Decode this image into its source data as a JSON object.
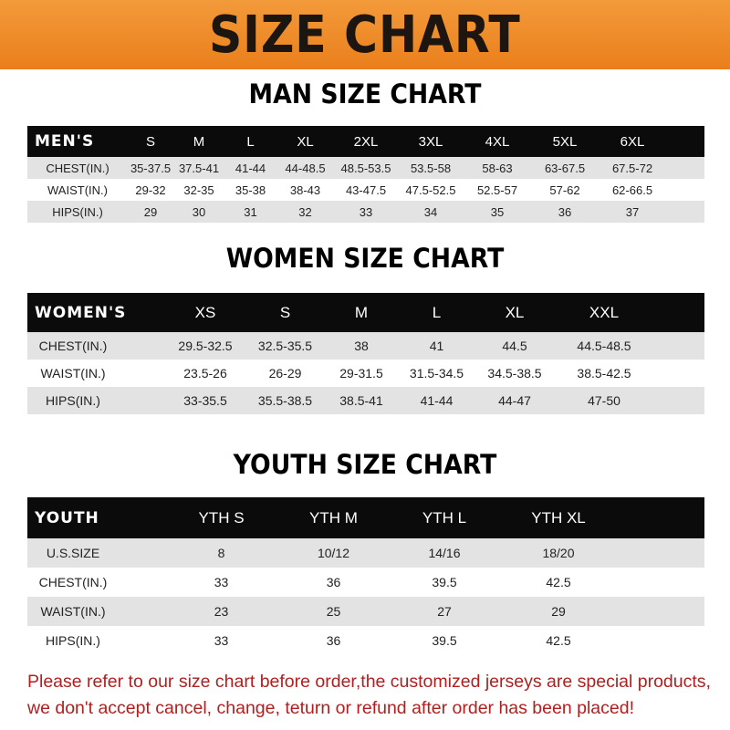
{
  "title": "SIZE CHART",
  "colors": {
    "banner": "#ee8a28",
    "header_row": "#0b0b0b",
    "stripe": "#e3e3e3",
    "note": "#b02020"
  },
  "men": {
    "heading": "MAN SIZE CHART",
    "label": "MEN'S",
    "sizes": [
      "S",
      "M",
      "L",
      "XL",
      "2XL",
      "3XL",
      "4XL",
      "5XL",
      "6XL"
    ],
    "rows": [
      {
        "label": "CHEST(IN.)",
        "values": [
          "35-37.5",
          "37.5-41",
          "41-44",
          "44-48.5",
          "48.5-53.5",
          "53.5-58",
          "58-63",
          "63-67.5",
          "67.5-72"
        ]
      },
      {
        "label": "WAIST(IN.)",
        "values": [
          "29-32",
          "32-35",
          "35-38",
          "38-43",
          "43-47.5",
          "47.5-52.5",
          "52.5-57",
          "57-62",
          "62-66.5"
        ]
      },
      {
        "label": "HIPS(IN.)",
        "values": [
          "29",
          "30",
          "31",
          "32",
          "33",
          "34",
          "35",
          "36",
          "37"
        ]
      }
    ]
  },
  "women": {
    "heading": "WOMEN SIZE CHART",
    "label": "WOMEN'S",
    "sizes": [
      "XS",
      "S",
      "M",
      "L",
      "XL",
      "XXL"
    ],
    "rows": [
      {
        "label": "CHEST(IN.)",
        "values": [
          "29.5-32.5",
          "32.5-35.5",
          "38",
          "41",
          "44.5",
          "44.5-48.5"
        ]
      },
      {
        "label": "WAIST(IN.)",
        "values": [
          "23.5-26",
          "26-29",
          "29-31.5",
          "31.5-34.5",
          "34.5-38.5",
          "38.5-42.5"
        ]
      },
      {
        "label": "HIPS(IN.)",
        "values": [
          "33-35.5",
          "35.5-38.5",
          "38.5-41",
          "41-44",
          "44-47",
          "47-50"
        ]
      }
    ]
  },
  "youth": {
    "heading": "YOUTH SIZE CHART",
    "label": "YOUTH",
    "sizes": [
      "YTH S",
      "YTH M",
      "YTH L",
      "YTH XL"
    ],
    "rows": [
      {
        "label": "U.S.SIZE",
        "values": [
          "8",
          "10/12",
          "14/16",
          "18/20"
        ]
      },
      {
        "label": "CHEST(IN.)",
        "values": [
          "33",
          "36",
          "39.5",
          "42.5"
        ]
      },
      {
        "label": "WAIST(IN.)",
        "values": [
          "23",
          "25",
          "27",
          "29"
        ]
      },
      {
        "label": "HIPS(IN.)",
        "values": [
          "33",
          "36",
          "39.5",
          "42.5"
        ]
      }
    ]
  },
  "note": [
    "Please refer to our size chart before order,the customized jerseys are special products,",
    "we don't accept cancel, change, teturn or refund after order has been placed!"
  ]
}
